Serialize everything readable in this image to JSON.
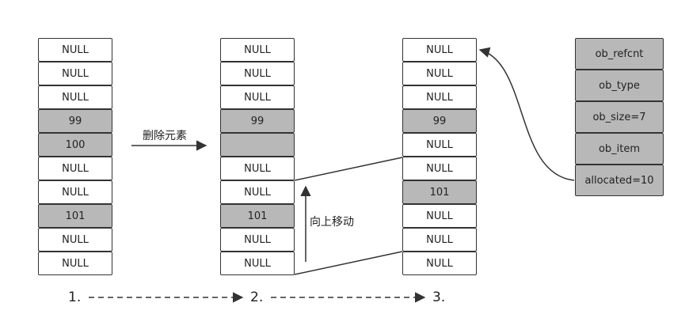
{
  "lists": [
    {
      "cells": [
        {
          "text": "NULL",
          "gray": false
        },
        {
          "text": "NULL",
          "gray": false
        },
        {
          "text": "NULL",
          "gray": false
        },
        {
          "text": "99",
          "gray": true
        },
        {
          "text": "100",
          "gray": true
        },
        {
          "text": "NULL",
          "gray": false
        },
        {
          "text": "NULL",
          "gray": false
        },
        {
          "text": "101",
          "gray": true
        },
        {
          "text": "NULL",
          "gray": false
        },
        {
          "text": "NULL",
          "gray": false
        }
      ]
    },
    {
      "cells": [
        {
          "text": "NULL",
          "gray": false
        },
        {
          "text": "NULL",
          "gray": false
        },
        {
          "text": "NULL",
          "gray": false
        },
        {
          "text": "99",
          "gray": true
        },
        {
          "text": "",
          "gray": true
        },
        {
          "text": "NULL",
          "gray": false
        },
        {
          "text": "NULL",
          "gray": false
        },
        {
          "text": "101",
          "gray": true
        },
        {
          "text": "NULL",
          "gray": false
        },
        {
          "text": "NULL",
          "gray": false
        }
      ]
    },
    {
      "cells": [
        {
          "text": "NULL",
          "gray": false
        },
        {
          "text": "NULL",
          "gray": false
        },
        {
          "text": "NULL",
          "gray": false
        },
        {
          "text": "99",
          "gray": true
        },
        {
          "text": "NULL",
          "gray": false
        },
        {
          "text": "NULL",
          "gray": false
        },
        {
          "text": "101",
          "gray": true
        },
        {
          "text": "NULL",
          "gray": false
        },
        {
          "text": "NULL",
          "gray": false
        },
        {
          "text": "NULL",
          "gray": false
        }
      ]
    }
  ],
  "object_fields": [
    "ob_refcnt",
    "ob_type",
    "ob_size=7",
    "ob_item",
    "allocated=10"
  ],
  "labels": {
    "delete": "删除元素",
    "move_up": "向上移动"
  },
  "steps": [
    "1.",
    "2.",
    "3."
  ],
  "colors": {
    "filled": "#b8b8b8",
    "empty": "#ffffff",
    "stroke": "#333333"
  }
}
